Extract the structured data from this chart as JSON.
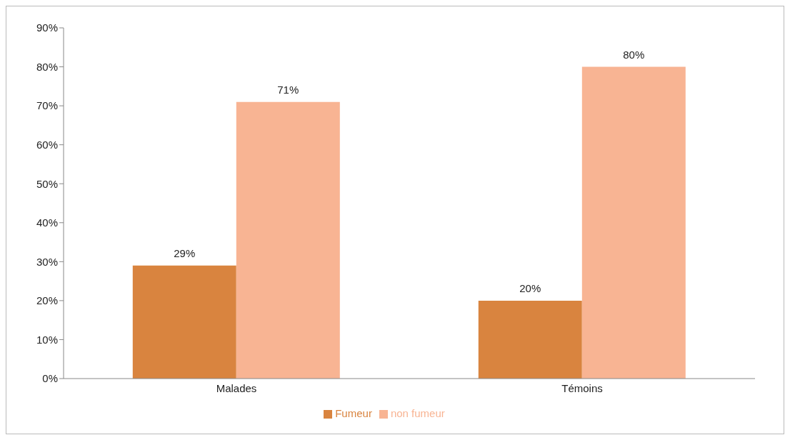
{
  "chart_data": {
    "type": "bar",
    "categories": [
      "Malades",
      "Témoins"
    ],
    "series": [
      {
        "name": "Fumeur",
        "color": "#d9843f",
        "values": [
          29,
          20
        ],
        "value_labels": [
          "29%",
          "20%"
        ]
      },
      {
        "name": "non fumeur",
        "color": "#f8b493",
        "values": [
          71,
          80
        ],
        "value_labels": [
          "71%",
          "80%"
        ]
      }
    ],
    "ylim": [
      0,
      90
    ],
    "yticks": [
      {
        "value": 0,
        "label": "0%"
      },
      {
        "value": 10,
        "label": "10%"
      },
      {
        "value": 20,
        "label": "20%"
      },
      {
        "value": 30,
        "label": "30%"
      },
      {
        "value": 40,
        "label": "40%"
      },
      {
        "value": 50,
        "label": "50%"
      },
      {
        "value": 60,
        "label": "60%"
      },
      {
        "value": 70,
        "label": "70%"
      },
      {
        "value": 80,
        "label": "80%"
      },
      {
        "value": 90,
        "label": "90%"
      }
    ],
    "grid": false,
    "legend": "bottom"
  }
}
